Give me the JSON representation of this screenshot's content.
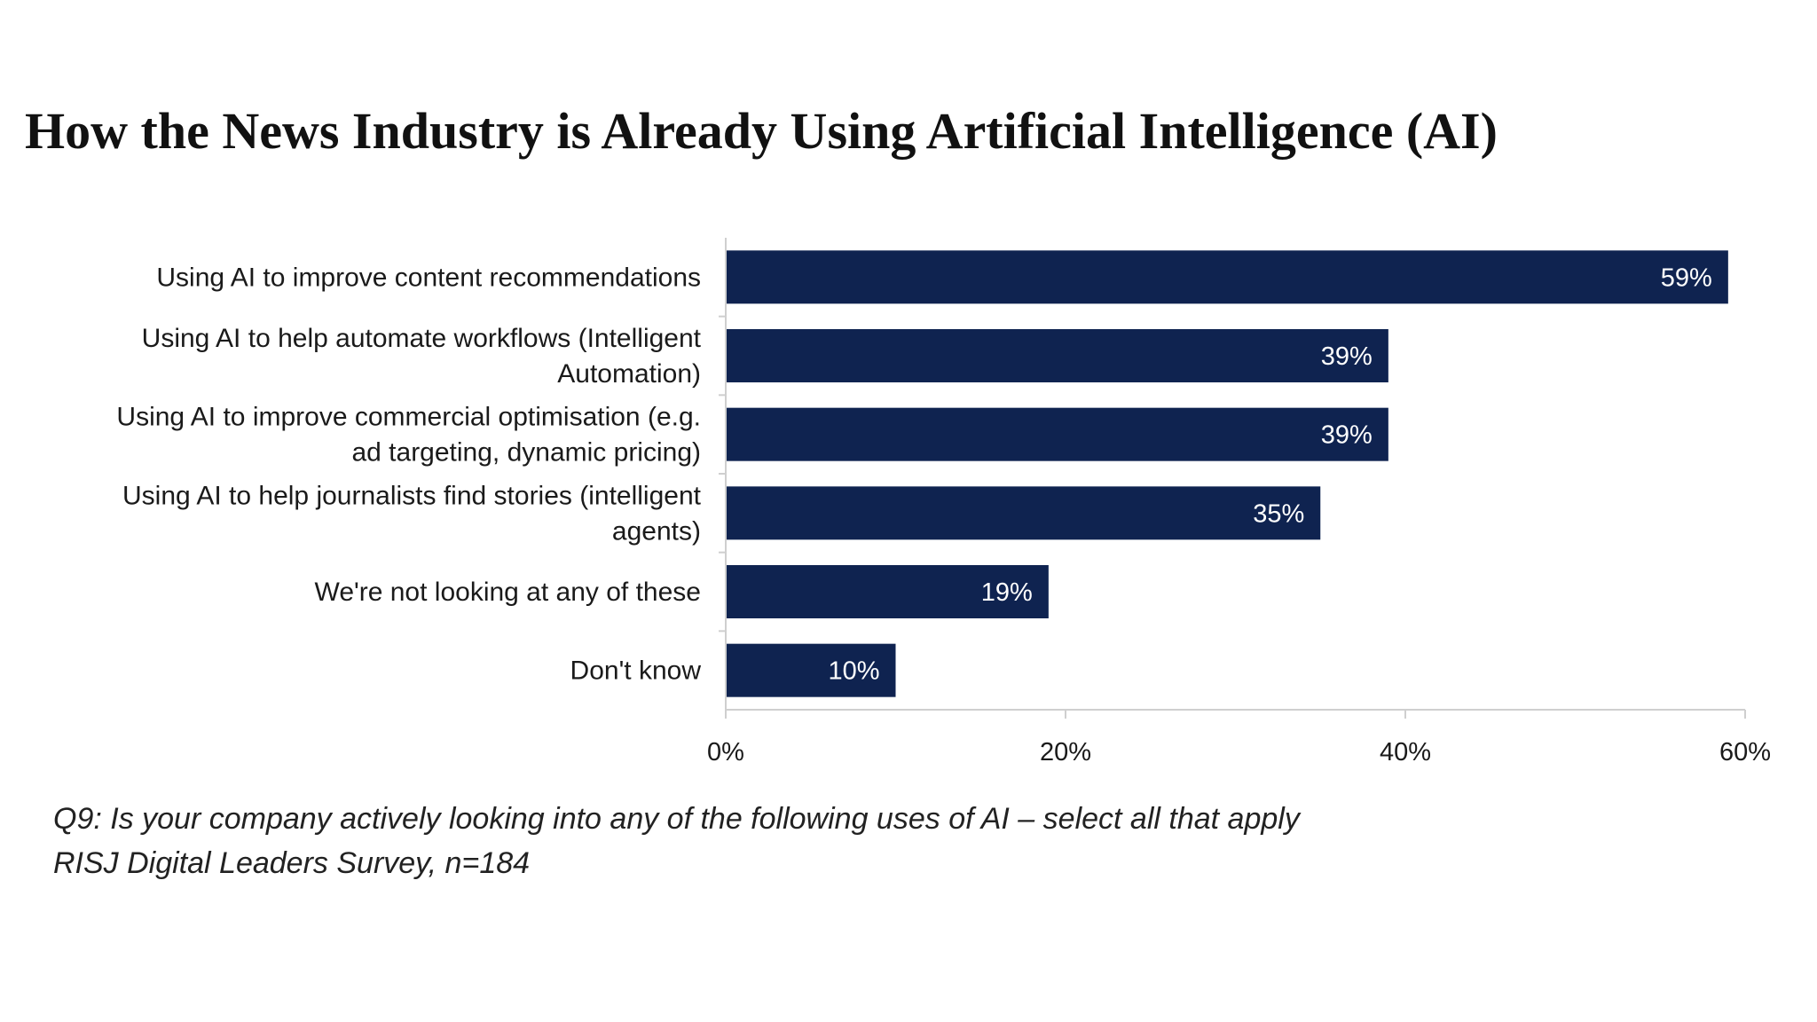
{
  "chart_data": {
    "type": "bar",
    "orientation": "horizontal",
    "title": "How the News Industry is Already Using Artificial Intelligence (AI)",
    "categories": [
      "Using AI to improve content recommendations",
      "Using AI to help automate workflows (Intelligent Automation)",
      "Using AI to improve commercial optimisation (e.g. ad targeting, dynamic pricing)",
      "Using AI to help journalists find stories (intelligent agents)",
      "We're not looking at any of these",
      "Don't know"
    ],
    "category_label_lines": [
      [
        "Using AI to improve content recommendations"
      ],
      [
        "Using AI to help automate workflows (Intelligent",
        "Automation)"
      ],
      [
        "Using AI to improve commercial optimisation (e.g.",
        "ad targeting, dynamic pricing)"
      ],
      [
        "Using AI to help journalists find stories (intelligent",
        "agents)"
      ],
      [
        "We're not looking at any of these"
      ],
      [
        "Don't know"
      ]
    ],
    "values": [
      59,
      39,
      39,
      35,
      19,
      10
    ],
    "data_labels": [
      "59%",
      "39%",
      "39%",
      "35%",
      "19%",
      "10%"
    ],
    "xlim": [
      0,
      60
    ],
    "xticks": [
      0,
      20,
      40,
      60
    ],
    "xtick_labels": [
      "0%",
      "20%",
      "40%",
      "60%"
    ],
    "xlabel": "",
    "ylabel": "",
    "grid": false,
    "legend": "none",
    "bar_color": "#0f2350",
    "label_color": "#ffffff"
  },
  "captions": {
    "question": "Q9: Is your company actively looking into any of the following uses of AI – select all that apply",
    "source": "RISJ Digital Leaders Survey, n=184"
  }
}
